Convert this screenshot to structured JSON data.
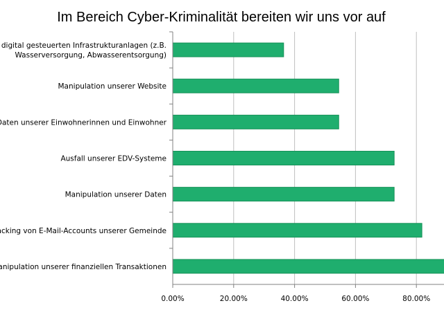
{
  "chart_data": {
    "type": "bar",
    "orientation": "horizontal",
    "title": "Im Bereich Cyber-Kriminalität bereiten wir uns vor auf",
    "xlabel": "",
    "ylabel": "",
    "categories": [
      [
        "unserer digital gesteuerten Infrastrukturanlagen (z.B.",
        "Wasserversorgung, Abwasserentsorgung)"
      ],
      [
        "Manipulation unserer Website"
      ],
      [
        "von Daten unserer Einwohnerinnen und Einwohner"
      ],
      [
        "Ausfall unserer EDV-Systeme"
      ],
      [
        "Manipulation unserer Daten"
      ],
      [
        "Hacking von E-Mail-Accounts unserer Gemeinde"
      ],
      [
        "Manipulation unserer finanziellen Transaktionen"
      ]
    ],
    "values": [
      36.4,
      54.5,
      54.5,
      72.7,
      72.7,
      81.8,
      90.9
    ],
    "xlim": [
      0,
      90
    ],
    "ticks": [
      {
        "value": 0,
        "label": "0.00%"
      },
      {
        "value": 20,
        "label": "20.00%"
      },
      {
        "value": 40,
        "label": "40.00%"
      },
      {
        "value": 60,
        "label": "60.00%"
      },
      {
        "value": 80,
        "label": "80.00%"
      }
    ],
    "grid": true,
    "legend": "none",
    "colors": {
      "bar": "#1fae6e",
      "bar_edge": "#159157",
      "grid": "#bfbfbf",
      "axis": "#808080"
    }
  }
}
